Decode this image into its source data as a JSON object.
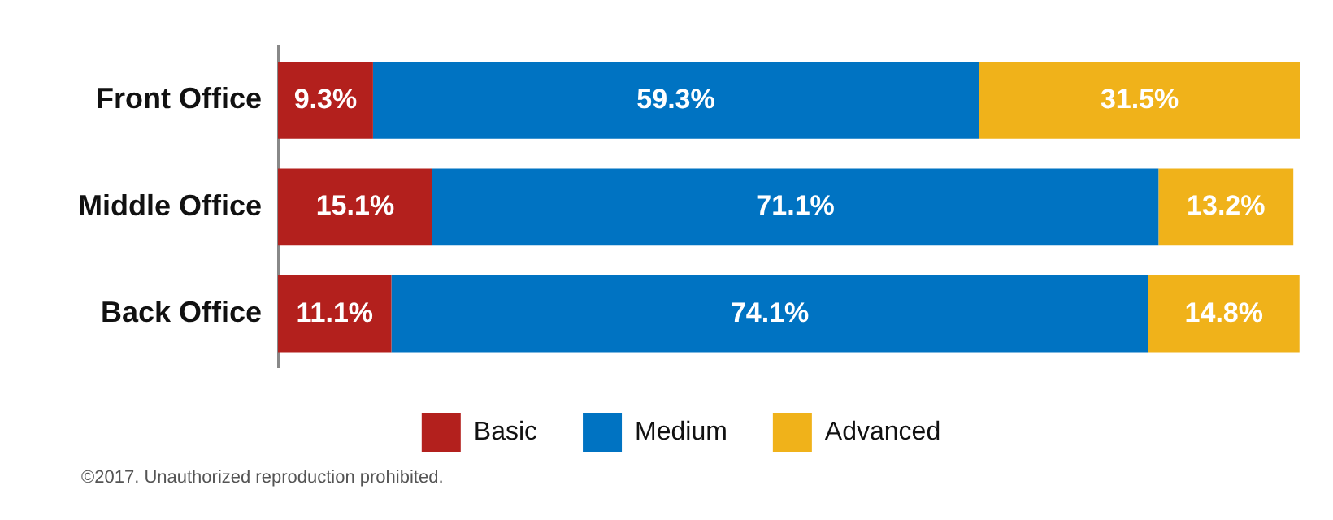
{
  "chart_data": {
    "type": "bar",
    "orientation": "horizontal",
    "stacked": true,
    "categories": [
      "Front Office",
      "Middle Office",
      "Back Office"
    ],
    "series": [
      {
        "name": "Basic",
        "color": "#b3201d",
        "values": [
          9.3,
          15.1,
          11.1
        ],
        "value_labels": [
          "9.3%",
          "15.1%",
          "11.1%"
        ]
      },
      {
        "name": "Medium",
        "color": "#0073c2",
        "values": [
          59.3,
          71.1,
          74.1
        ],
        "value_labels": [
          "59.3%",
          "71.1%",
          "74.1%"
        ]
      },
      {
        "name": "Advanced",
        "color": "#f0b21a",
        "values": [
          31.5,
          13.2,
          14.8
        ],
        "value_labels": [
          "31.5%",
          "13.2%",
          "14.8%"
        ]
      }
    ],
    "legend": "bottom",
    "annotations": [
      "©2017. Unauthorized reproduction prohibited."
    ]
  }
}
